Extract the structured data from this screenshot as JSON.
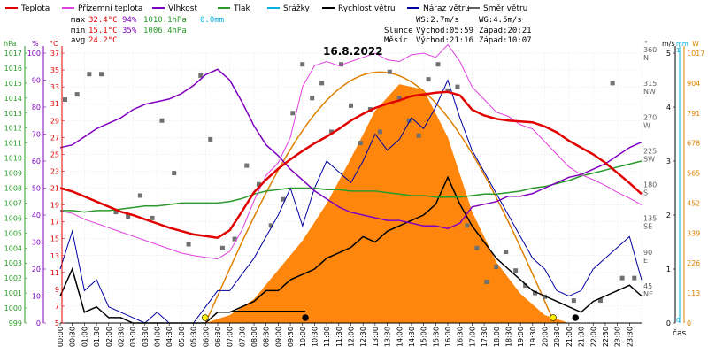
{
  "chart_data": {
    "type": "line",
    "title": "16.8.2022",
    "legend": [
      {
        "name": "Teplota",
        "color": "#e00000"
      },
      {
        "name": "Přízemní teplota",
        "color": "#e040e0"
      },
      {
        "name": "Vlhkost",
        "color": "#8000c0"
      },
      {
        "name": "Tlak",
        "color": "#2a9a2a"
      },
      {
        "name": "Srážky",
        "color": "#00b0e0"
      },
      {
        "name": "Rychlost větru",
        "color": "#000000"
      },
      {
        "name": "Náraz větru",
        "color": "#0000a0"
      },
      {
        "name": "Směr větru",
        "color": "#606060"
      }
    ],
    "stats": {
      "max": {
        "label": "max",
        "temp": "32.4°C",
        "hum": "94%",
        "press": "1010.1hPa",
        "rain": "0.0mm"
      },
      "min": {
        "label": "min",
        "temp": "15.1°C",
        "hum": "35%",
        "press": "1006.4hPa"
      },
      "avg": {
        "label": "avg",
        "temp": "24.2°C"
      }
    },
    "wind_info": {
      "ws": "WS:2.7m/s",
      "wg": "WG:4.5m/s"
    },
    "sun": {
      "label": "Slunce",
      "rise": "Východ:05:59",
      "set": "Západ:20:21"
    },
    "moon": {
      "label": "Měsíc",
      "rise": "Východ:21:16",
      "set": "Západ:10:07"
    },
    "xlabel": "čas",
    "x_ticks": [
      "00:00",
      "00:30",
      "01:00",
      "01:30",
      "02:00",
      "02:30",
      "03:00",
      "03:30",
      "04:00",
      "04:30",
      "05:00",
      "05:30",
      "06:00",
      "06:30",
      "07:00",
      "07:30",
      "08:00",
      "08:30",
      "09:00",
      "09:30",
      "10:00",
      "10:30",
      "11:00",
      "11:30",
      "12:00",
      "12:30",
      "13:00",
      "13:30",
      "14:00",
      "14:30",
      "15:00",
      "15:30",
      "16:00",
      "16:30",
      "17:00",
      "17:30",
      "18:00",
      "18:30",
      "19:00",
      "19:30",
      "20:00",
      "20:30",
      "21:00",
      "21:30",
      "22:00",
      "22:30",
      "23:00",
      "23:30"
    ],
    "axes": {
      "hpa": {
        "unit": "hPa",
        "color": "#2a9a2a",
        "ticks": [
          "1017",
          "1016",
          "1015",
          "1014",
          "1013",
          "1012",
          "1011",
          "1010",
          "1009",
          "1008",
          "1007",
          "1006",
          "1005",
          "1004",
          "1003",
          "1002",
          "1001",
          "1000",
          "999"
        ],
        "ylim": [
          999,
          1017
        ]
      },
      "pct": {
        "unit": "%",
        "color": "#8000c0",
        "ticks": [
          "100",
          "90",
          "80",
          "70",
          "60",
          "50",
          "40",
          "30",
          "20",
          "10",
          "0"
        ],
        "ylim": [
          0,
          100
        ]
      },
      "celsius": {
        "unit": "°C",
        "color": "#e00000",
        "ticks": [
          "37",
          "35",
          "33",
          "31",
          "29",
          "27",
          "25",
          "23",
          "21",
          "19",
          "17",
          "15",
          "13",
          "11",
          "9",
          "7",
          "5"
        ],
        "ylim": [
          5,
          37
        ]
      },
      "direction": {
        "unit": "°",
        "color": "#606060",
        "ticks": [
          {
            "deg": "360",
            "dir": "N"
          },
          {
            "deg": "315",
            "dir": "NW"
          },
          {
            "deg": "270",
            "dir": "W"
          },
          {
            "deg": "225",
            "dir": "SW"
          },
          {
            "deg": "180",
            "dir": "S"
          },
          {
            "deg": "135",
            "dir": "SE"
          },
          {
            "deg": "90",
            "dir": "E"
          },
          {
            "deg": "45",
            "dir": "NE"
          }
        ],
        "ylim": [
          0,
          360
        ]
      },
      "wind": {
        "unit": "m/s",
        "color": "#000000",
        "ticks": [
          "5",
          "4",
          "3",
          "2",
          "1",
          "0"
        ],
        "ylim": [
          0,
          5
        ]
      },
      "rain": {
        "unit": "mm",
        "color": "#00b0e0",
        "ticks": [
          "1",
          "0"
        ],
        "ylim": [
          0,
          1
        ]
      },
      "solar": {
        "unit": "W",
        "color": "#e08000",
        "ticks": [
          "1017",
          "904",
          "791",
          "678",
          "565",
          "452",
          "339",
          "226",
          "113",
          "0"
        ],
        "ylim": [
          0,
          1017
        ]
      }
    },
    "series": [
      {
        "name": "Teplota",
        "unit": "°C",
        "x_hours": [
          0,
          0.5,
          1,
          1.5,
          2,
          2.5,
          3,
          3.5,
          4,
          4.5,
          5,
          5.5,
          6,
          6.5,
          7,
          7.5,
          8,
          8.5,
          9,
          9.5,
          10,
          10.5,
          11,
          11.5,
          12,
          12.5,
          13,
          13.5,
          14,
          14.5,
          15,
          15.5,
          16,
          16.5,
          17,
          17.5,
          18,
          18.5,
          19,
          19.5,
          20,
          20.5,
          21,
          21.5,
          22,
          22.5,
          23,
          23.5,
          24
        ],
        "values": [
          21.0,
          20.6,
          20.0,
          19.4,
          18.8,
          18.2,
          17.8,
          17.3,
          16.8,
          16.3,
          15.9,
          15.5,
          15.3,
          15.1,
          16.0,
          18.2,
          20.5,
          22.0,
          23.3,
          24.4,
          25.4,
          26.3,
          27.1,
          28.0,
          29.0,
          29.8,
          30.5,
          31.0,
          31.4,
          31.9,
          32.1,
          32.3,
          32.4,
          32.0,
          30.3,
          29.6,
          29.2,
          29.0,
          28.9,
          28.8,
          28.3,
          27.6,
          26.6,
          25.8,
          25.0,
          24.0,
          22.8,
          21.6,
          20.3
        ]
      },
      {
        "name": "Přízemní teplota",
        "unit": "°C",
        "x_hours": [
          0,
          0.5,
          1,
          1.5,
          2,
          2.5,
          3,
          3.5,
          4,
          4.5,
          5,
          5.5,
          6,
          6.5,
          7,
          7.5,
          8,
          8.5,
          9,
          9.5,
          10,
          10.5,
          11,
          11.5,
          12,
          12.5,
          13,
          13.5,
          14,
          14.5,
          15,
          15.5,
          16,
          16.5,
          17,
          17.5,
          18,
          18.5,
          19,
          19.5,
          20,
          20.5,
          21,
          21.5,
          22,
          22.5,
          23,
          23.5,
          24
        ],
        "values": [
          18.3,
          18.0,
          17.3,
          16.8,
          16.3,
          15.8,
          15.3,
          14.8,
          14.3,
          13.8,
          13.3,
          13.0,
          12.8,
          12.6,
          13.5,
          16.0,
          19.5,
          22.5,
          24.0,
          27.0,
          33.0,
          35.5,
          36.0,
          35.5,
          36.0,
          36.5,
          37.0,
          36.2,
          36.0,
          36.8,
          37.0,
          36.5,
          38.0,
          36.0,
          33.0,
          31.5,
          30.0,
          29.5,
          28.5,
          28.0,
          26.5,
          25.0,
          23.5,
          22.6,
          22.0,
          21.3,
          20.5,
          19.8,
          19.0
        ]
      },
      {
        "name": "Vlhkost",
        "unit": "%",
        "x_hours": [
          0,
          0.5,
          1,
          1.5,
          2,
          2.5,
          3,
          3.5,
          4,
          4.5,
          5,
          5.5,
          6,
          6.5,
          7,
          7.5,
          8,
          8.5,
          9,
          9.5,
          10,
          10.5,
          11,
          11.5,
          12,
          12.5,
          13,
          13.5,
          14,
          14.5,
          15,
          15.5,
          16,
          16.5,
          17,
          17.5,
          18,
          18.5,
          19,
          19.5,
          20,
          20.5,
          21,
          21.5,
          22,
          22.5,
          23,
          23.5,
          24
        ],
        "values": [
          65,
          66,
          69,
          72,
          74,
          76,
          79,
          81,
          82,
          83,
          85,
          88,
          92,
          94,
          90,
          82,
          73,
          66,
          62,
          57,
          53,
          49,
          46,
          43,
          41,
          40,
          39,
          38,
          38,
          37,
          36,
          36,
          35,
          37,
          43,
          44,
          45,
          47,
          47,
          48,
          50,
          52,
          54,
          55,
          57,
          59,
          62,
          65,
          67
        ]
      },
      {
        "name": "Tlak",
        "unit": "hPa",
        "x_hours": [
          0,
          0.5,
          1,
          1.5,
          2,
          2.5,
          3,
          3.5,
          4,
          4.5,
          5,
          5.5,
          6,
          6.5,
          7,
          7.5,
          8,
          8.5,
          9,
          9.5,
          10,
          10.5,
          11,
          11.5,
          12,
          12.5,
          13,
          13.5,
          14,
          14.5,
          15,
          15.5,
          16,
          16.5,
          17,
          17.5,
          18,
          18.5,
          19,
          19.5,
          20,
          20.5,
          21,
          21.5,
          22,
          22.5,
          23,
          23.5,
          24
        ],
        "values": [
          1006.5,
          1006.5,
          1006.4,
          1006.5,
          1006.5,
          1006.6,
          1006.7,
          1006.8,
          1006.8,
          1006.9,
          1007.0,
          1007.0,
          1007.0,
          1007.0,
          1007.1,
          1007.3,
          1007.6,
          1007.8,
          1007.9,
          1008.0,
          1008.0,
          1008.0,
          1007.9,
          1007.9,
          1007.8,
          1007.8,
          1007.8,
          1007.7,
          1007.6,
          1007.5,
          1007.5,
          1007.4,
          1007.4,
          1007.4,
          1007.5,
          1007.6,
          1007.6,
          1007.7,
          1007.8,
          1008.0,
          1008.1,
          1008.3,
          1008.5,
          1008.8,
          1009.0,
          1009.2,
          1009.4,
          1009.6,
          1009.8
        ]
      },
      {
        "name": "Rychlost větru",
        "unit": "m/s",
        "x_hours": [
          0,
          0.5,
          1,
          1.5,
          2,
          2.5,
          3,
          3.5,
          4,
          4.5,
          5,
          5.5,
          6,
          6.5,
          7,
          7.5,
          8,
          8.5,
          9,
          9.5,
          10,
          10.5,
          11,
          11.5,
          12,
          12.5,
          13,
          13.5,
          14,
          14.5,
          15,
          15.5,
          16,
          16.5,
          17,
          17.5,
          18,
          18.5,
          19,
          19.5,
          20,
          20.5,
          21,
          21.5,
          22,
          22.5,
          23,
          23.5,
          24
        ],
        "values": [
          0.5,
          1.0,
          0.2,
          0.3,
          0.1,
          0.1,
          0.0,
          0.0,
          0.0,
          0.0,
          0.0,
          0.0,
          0.0,
          0.2,
          0.2,
          0.3,
          0.4,
          0.6,
          0.6,
          0.8,
          0.9,
          1.0,
          1.2,
          1.3,
          1.4,
          1.6,
          1.5,
          1.7,
          1.8,
          1.9,
          2.0,
          2.2,
          2.7,
          2.2,
          1.8,
          1.5,
          1.2,
          1.0,
          0.8,
          0.6,
          0.5,
          0.4,
          0.3,
          0.2,
          0.4,
          0.5,
          0.6,
          0.7,
          0.5
        ]
      },
      {
        "name": "Náraz větru",
        "unit": "m/s",
        "x_hours": [
          0,
          0.5,
          1,
          1.5,
          2,
          2.5,
          3,
          3.5,
          4,
          4.5,
          5,
          5.5,
          6,
          6.5,
          7,
          7.5,
          8,
          8.5,
          9,
          9.5,
          10,
          10.5,
          11,
          11.5,
          12,
          12.5,
          13,
          13.5,
          14,
          14.5,
          15,
          15.5,
          16,
          16.5,
          17,
          17.5,
          18,
          18.5,
          19,
          19.5,
          20,
          20.5,
          21,
          21.5,
          22,
          22.5,
          23,
          23.5,
          24
        ],
        "values": [
          1.0,
          1.7,
          0.6,
          0.8,
          0.3,
          0.2,
          0.1,
          0.0,
          0.2,
          0.0,
          0.0,
          0.0,
          0.3,
          0.6,
          0.6,
          0.9,
          1.2,
          1.6,
          2.0,
          2.5,
          1.8,
          2.5,
          3.0,
          2.8,
          2.6,
          3.0,
          3.5,
          3.2,
          3.4,
          3.8,
          3.6,
          4.0,
          4.5,
          3.8,
          3.2,
          2.8,
          2.4,
          2.0,
          1.6,
          1.2,
          1.0,
          0.6,
          0.5,
          0.6,
          1.0,
          1.2,
          1.4,
          1.6,
          0.8
        ]
      },
      {
        "name": "Solar",
        "unit": "W",
        "x_hours": [
          6,
          7,
          8,
          9,
          10,
          11,
          12,
          13,
          14,
          15,
          16,
          17,
          18,
          19,
          20,
          21
        ],
        "values": [
          0,
          30,
          90,
          200,
          310,
          450,
          620,
          800,
          900,
          880,
          700,
          420,
          230,
          110,
          30,
          0
        ]
      }
    ],
    "direction_points": [
      {
        "t": 0.2,
        "deg": 298
      },
      {
        "t": 0.7,
        "deg": 305
      },
      {
        "t": 1.2,
        "deg": 332
      },
      {
        "t": 1.7,
        "deg": 332
      },
      {
        "t": 2.3,
        "deg": 148
      },
      {
        "t": 2.8,
        "deg": 142
      },
      {
        "t": 3.3,
        "deg": 170
      },
      {
        "t": 3.8,
        "deg": 140
      },
      {
        "t": 4.2,
        "deg": 270
      },
      {
        "t": 4.7,
        "deg": 200
      },
      {
        "t": 5.3,
        "deg": 105
      },
      {
        "t": 5.8,
        "deg": 330
      },
      {
        "t": 6.2,
        "deg": 245
      },
      {
        "t": 6.7,
        "deg": 100
      },
      {
        "t": 7.2,
        "deg": 112
      },
      {
        "t": 7.7,
        "deg": 210
      },
      {
        "t": 8.2,
        "deg": 185
      },
      {
        "t": 8.7,
        "deg": 130
      },
      {
        "t": 9.2,
        "deg": 165
      },
      {
        "t": 9.6,
        "deg": 280
      },
      {
        "t": 10.0,
        "deg": 345
      },
      {
        "t": 10.4,
        "deg": 300
      },
      {
        "t": 10.8,
        "deg": 320
      },
      {
        "t": 11.2,
        "deg": 255
      },
      {
        "t": 11.6,
        "deg": 345
      },
      {
        "t": 12.0,
        "deg": 290
      },
      {
        "t": 12.4,
        "deg": 240
      },
      {
        "t": 12.8,
        "deg": 285
      },
      {
        "t": 13.2,
        "deg": 255
      },
      {
        "t": 13.6,
        "deg": 335
      },
      {
        "t": 14.0,
        "deg": 300
      },
      {
        "t": 14.4,
        "deg": 270
      },
      {
        "t": 14.8,
        "deg": 250
      },
      {
        "t": 15.2,
        "deg": 325
      },
      {
        "t": 15.6,
        "deg": 345
      },
      {
        "t": 16.0,
        "deg": 310
      },
      {
        "t": 16.4,
        "deg": 315
      },
      {
        "t": 16.8,
        "deg": 130
      },
      {
        "t": 17.2,
        "deg": 100
      },
      {
        "t": 17.6,
        "deg": 55
      },
      {
        "t": 18.0,
        "deg": 75
      },
      {
        "t": 18.4,
        "deg": 95
      },
      {
        "t": 18.8,
        "deg": 70
      },
      {
        "t": 19.2,
        "deg": 50
      },
      {
        "t": 19.6,
        "deg": 40
      },
      {
        "t": 20.0,
        "deg": 35
      },
      {
        "t": 21.2,
        "deg": 30
      },
      {
        "t": 22.3,
        "deg": 30
      },
      {
        "t": 22.8,
        "deg": 320
      },
      {
        "t": 23.2,
        "deg": 60
      },
      {
        "t": 23.7,
        "deg": 60
      }
    ],
    "markers": [
      {
        "name": "sunrise",
        "t": 5.98,
        "color": "#ffee00"
      },
      {
        "name": "moonset",
        "t": 10.12,
        "color": "#000000"
      },
      {
        "name": "sunset",
        "t": 20.35,
        "color": "#ffee00"
      },
      {
        "name": "moonrise",
        "t": 21.27,
        "color": "#000000"
      }
    ],
    "moon_up_interval": {
      "from": 7.1,
      "to": 10.12
    }
  }
}
